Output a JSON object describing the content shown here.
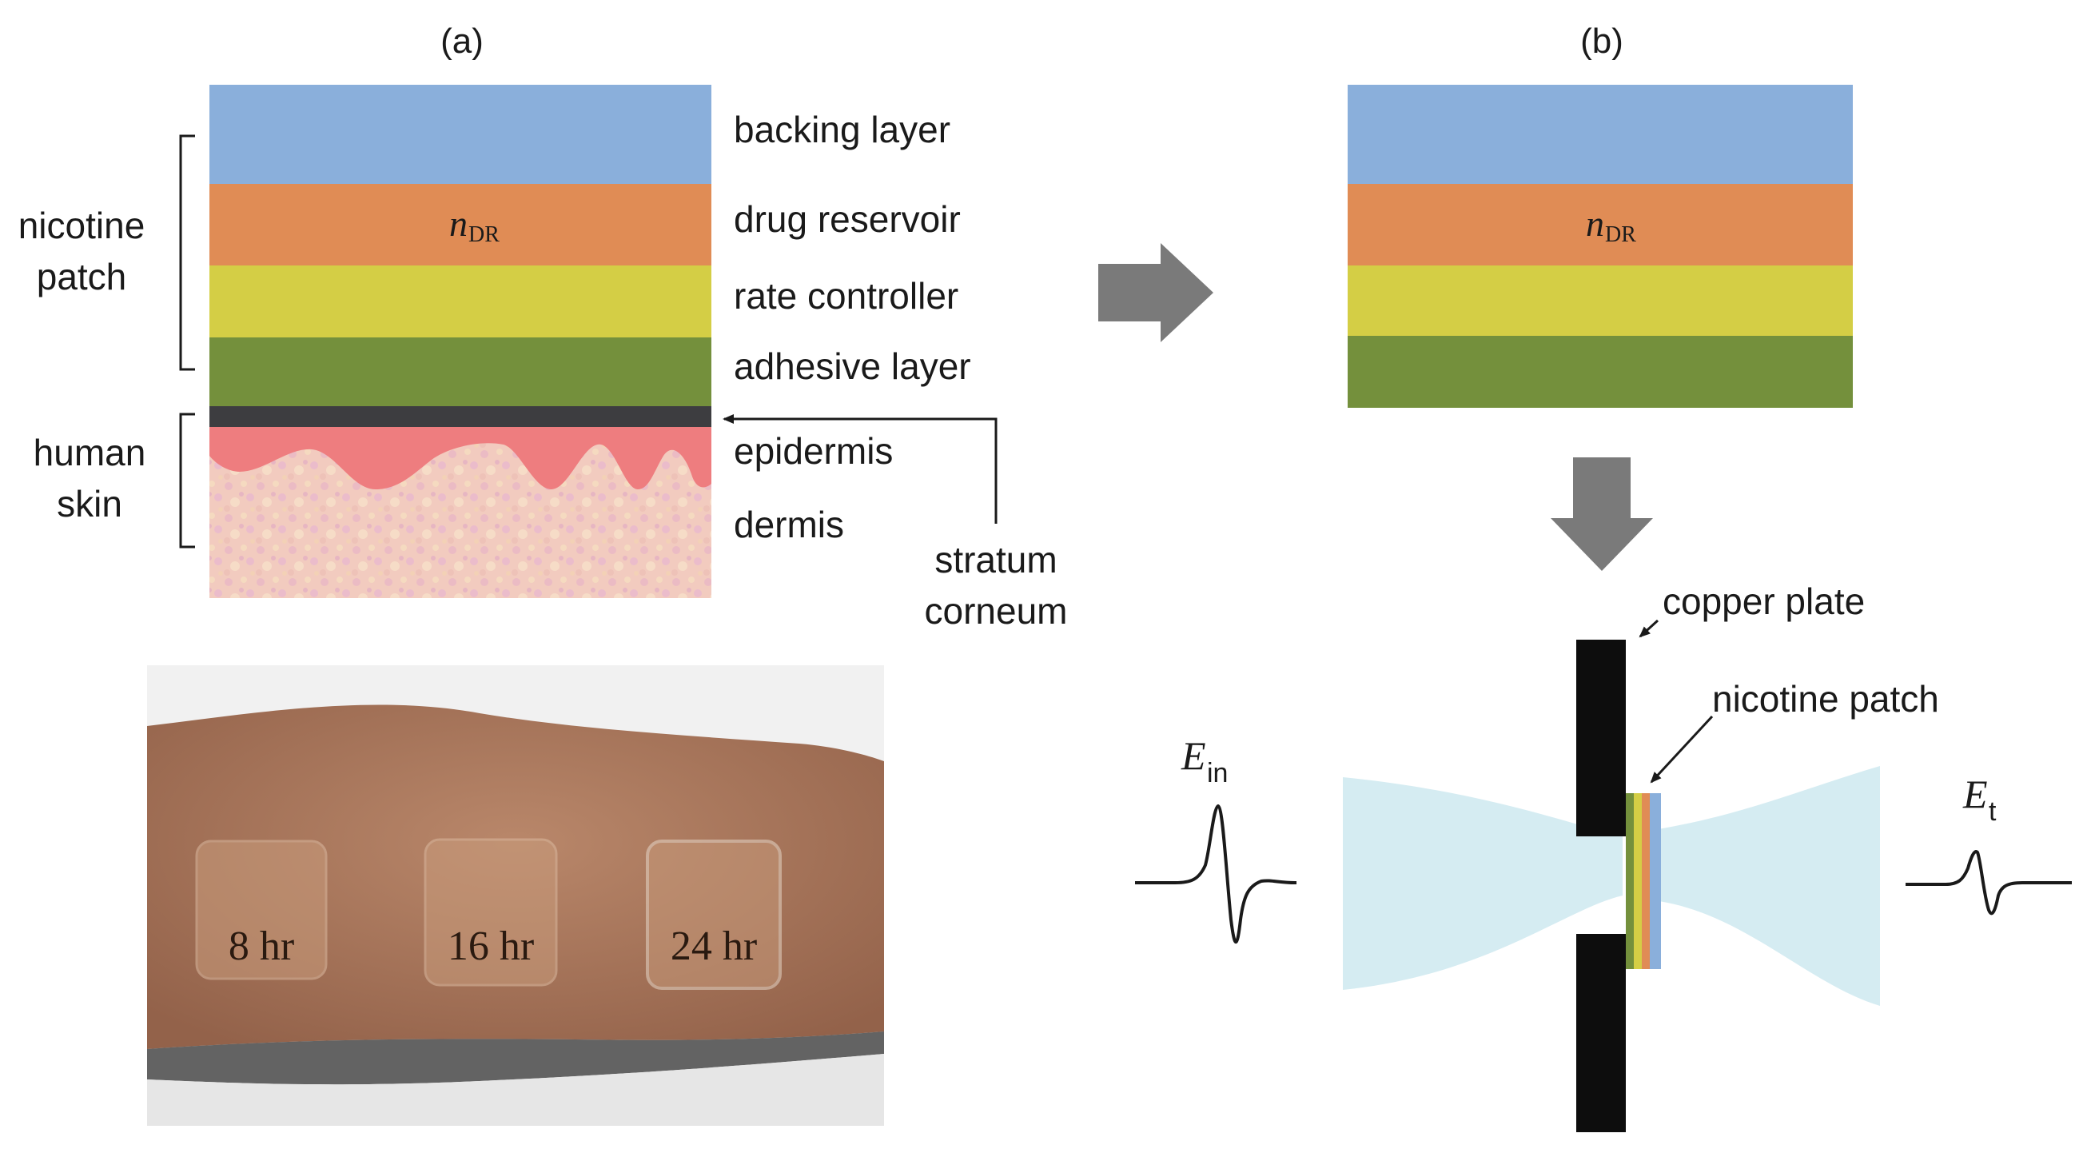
{
  "panel_a": {
    "panel_label": "(a)",
    "layers": {
      "backing": {
        "label": "backing layer",
        "color": "#8aafdb"
      },
      "reservoir": {
        "label": "drug reservoir",
        "color": "#e08c55",
        "symbol_main": "n",
        "symbol_sub": "DR"
      },
      "controller": {
        "label": "rate controller",
        "color": "#d4ce45"
      },
      "adhesive": {
        "label": "adhesive layer",
        "color": "#74903c"
      },
      "stratum": {
        "color": "#3d3d40"
      },
      "epidermis": {
        "label": "epidermis",
        "color": "#ee7d7f"
      },
      "dermis": {
        "label": "dermis",
        "color": "#f2cbbf"
      }
    },
    "group_labels": {
      "patch_line1": "nicotine",
      "patch_line2": "patch",
      "skin_line1": "human",
      "skin_line2": "skin"
    },
    "annotation": {
      "line1": "stratum",
      "line2": "corneum"
    }
  },
  "photo": {
    "labels": [
      "8 hr",
      "16 hr",
      "24 hr"
    ],
    "skin_color": "#a87557",
    "background_color": "#f3f3f3"
  },
  "panel_b": {
    "panel_label": "(b)",
    "symbol_main": "n",
    "symbol_sub": "DR",
    "copper_plate_label": "copper plate",
    "patch_label": "nicotine patch",
    "e_in_main": "E",
    "e_in_sub": "in",
    "e_t_main": "E",
    "e_t_sub": "t",
    "beam_color": "#d5ecf2",
    "arrow_color": "#7a7a7a"
  }
}
